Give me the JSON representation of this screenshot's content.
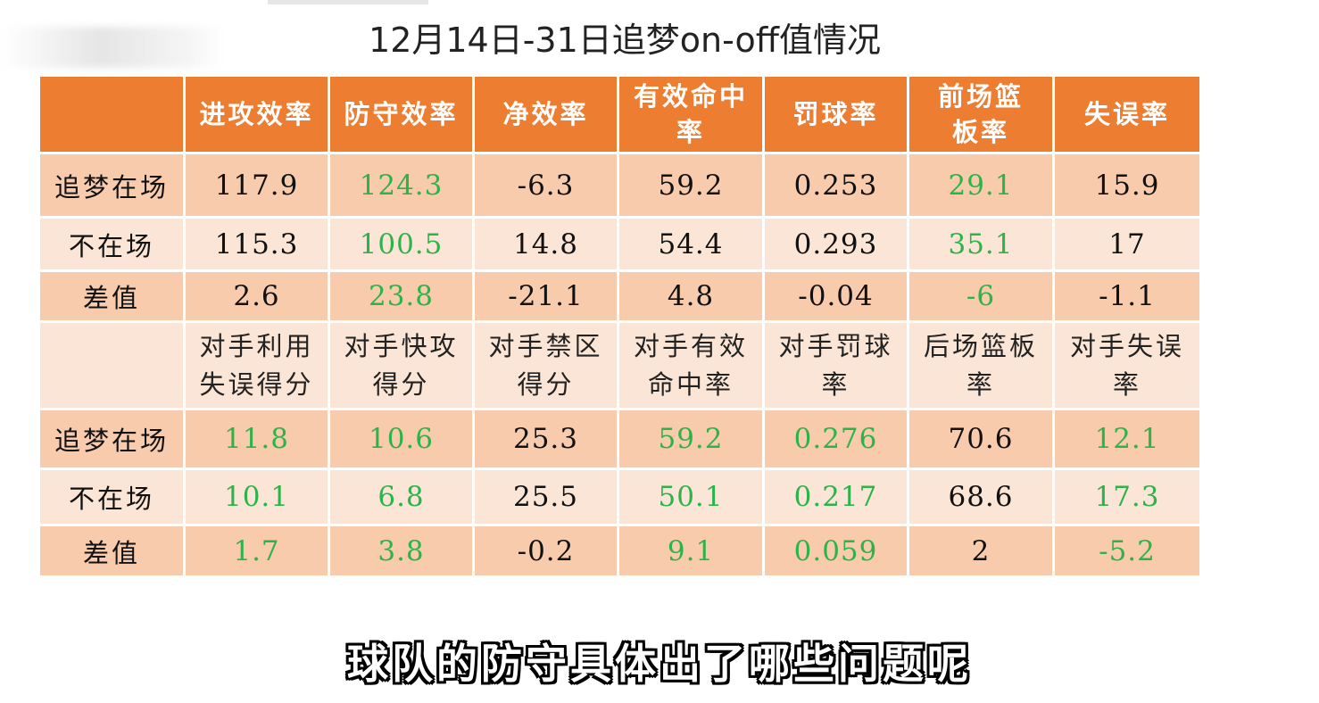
{
  "title": "12月14日-31日追梦on-off值情况",
  "header": [
    "",
    "进攻效率",
    "防守效率",
    "净效率",
    "有效命中率",
    "罚球率",
    "前场篮板率",
    "失误率"
  ],
  "rows_top": [
    {
      "label": "追梦在场",
      "cells": [
        "117.9",
        "124.3",
        "-6.3",
        "59.2",
        "0.253",
        "29.1",
        "15.9"
      ]
    },
    {
      "label": "不在场",
      "cells": [
        "115.3",
        "100.5",
        "14.8",
        "54.4",
        "0.293",
        "35.1",
        "17"
      ]
    },
    {
      "label": "差值",
      "cells": [
        "2.6",
        "23.8",
        "-21.1",
        "4.8",
        "-0.04",
        "-6",
        "-1.1"
      ]
    }
  ],
  "subheader": [
    "",
    "对手利用失误得分",
    "对手快攻得分",
    "对手禁区得分",
    "对手有效命中率",
    "对手罚球率",
    "后场篮板率",
    "对手失误率"
  ],
  "rows_bottom": [
    {
      "label": "追梦在场",
      "cells": [
        "11.8",
        "10.6",
        "25.3",
        "59.2",
        "0.276",
        "70.6",
        "12.1"
      ]
    },
    {
      "label": "不在场",
      "cells": [
        "10.1",
        "6.8",
        "25.5",
        "50.1",
        "0.217",
        "68.6",
        "17.3"
      ]
    },
    {
      "label": "差值",
      "cells": [
        "1.7",
        "3.8",
        "-0.2",
        "9.1",
        "0.059",
        "2",
        "-5.2"
      ]
    }
  ],
  "highlight_color": "#2db34a",
  "header_color": "#ed7d31",
  "caption": "球队的防守具体出了哪些问题呢"
}
